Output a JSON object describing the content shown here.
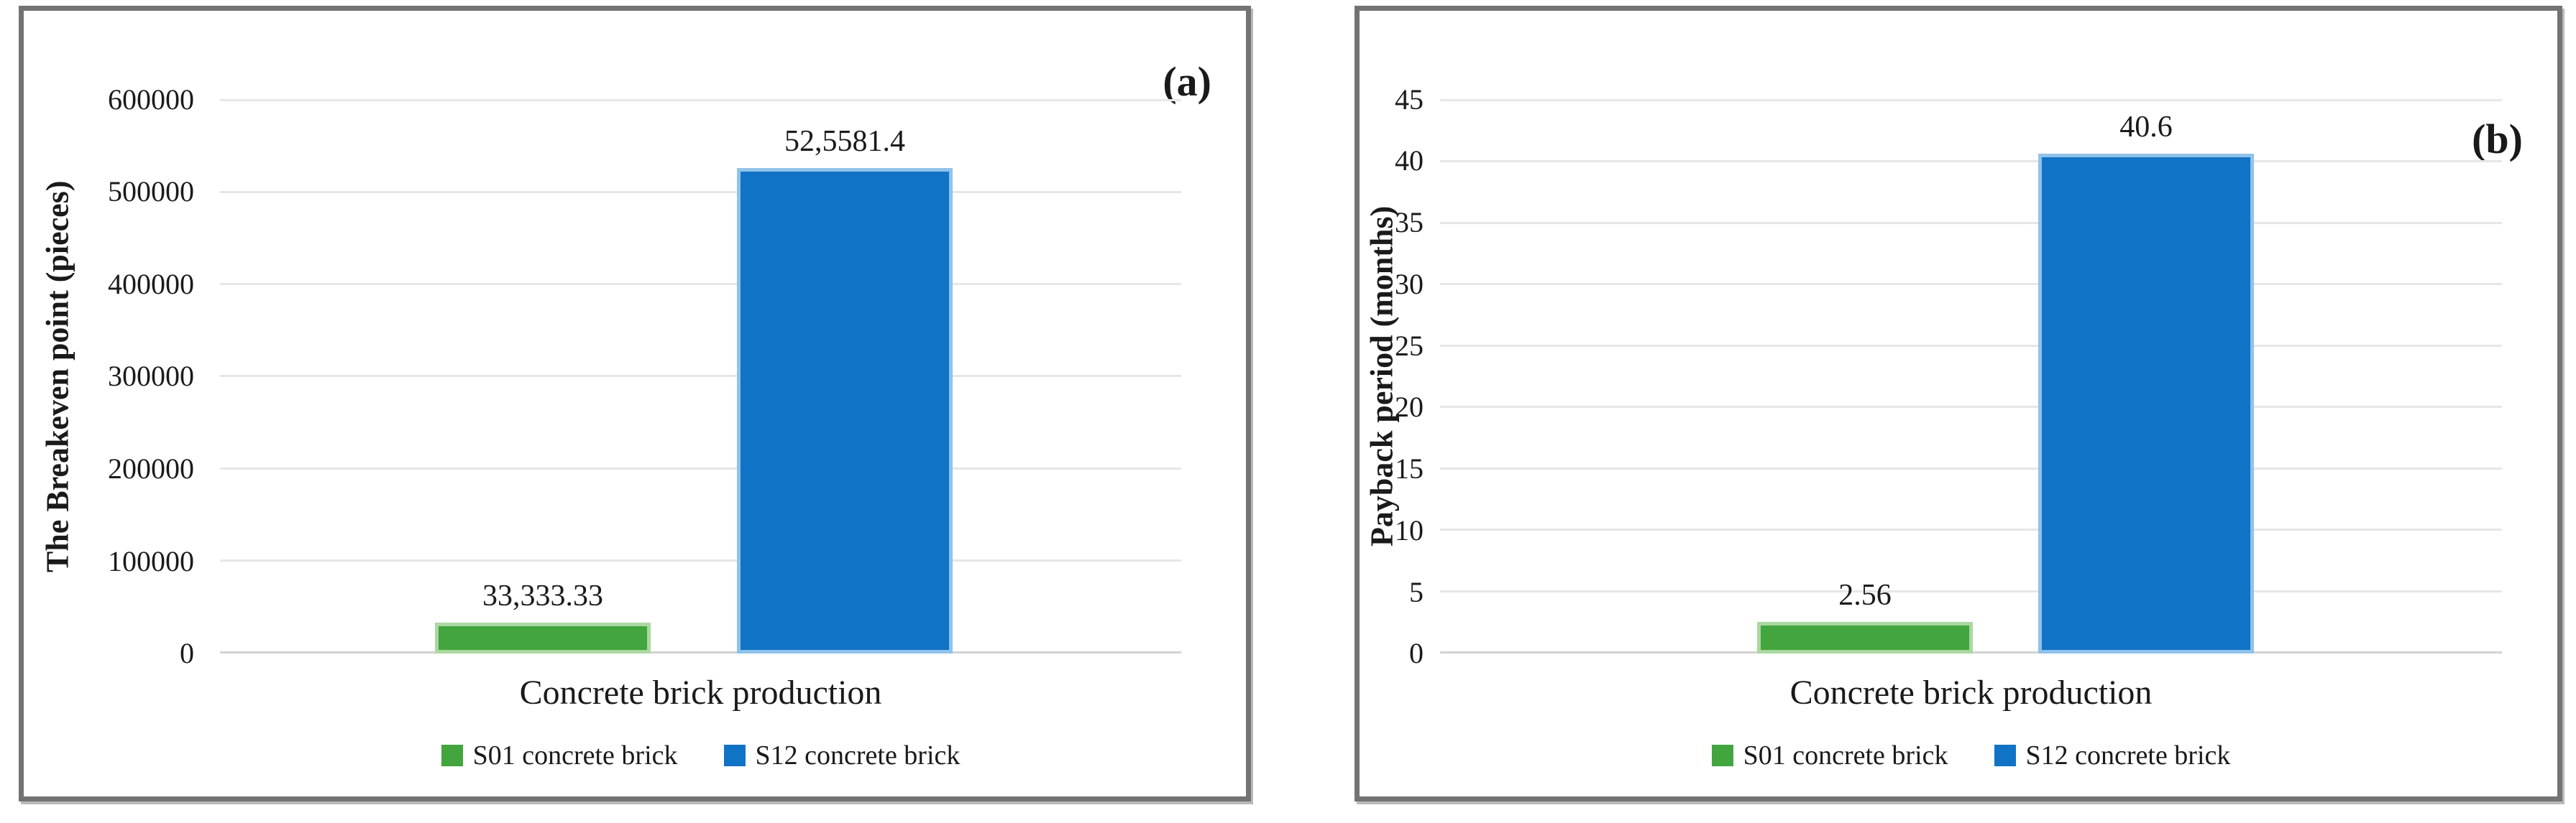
{
  "colors": {
    "s01_green": "#42A53E",
    "s01_green_edge": "#ABD8A1",
    "s12_blue": "#1173C5",
    "s12_blue_edge": "#8FC3EA",
    "gridline": "#E6E6E6",
    "axis_line": "#D2D2D2",
    "panel_border": "#737373",
    "text": "#1A1A1A"
  },
  "chart_data": [
    {
      "type": "bar",
      "panel_label": "(a)",
      "title": "",
      "xlabel": "Concrete brick production",
      "ylabel": "The Breakeven point (pieces)",
      "categories": [
        "Concrete brick production"
      ],
      "series": [
        {
          "name": "S01 concrete brick",
          "values": [
            33333.33
          ],
          "data_label": "33,333.33",
          "color": "#42A53E"
        },
        {
          "name": "S12 concrete brick",
          "values": [
            525581.4
          ],
          "data_label": "52,5581.4",
          "color": "#1173C5"
        }
      ],
      "ylim": [
        0,
        600000
      ],
      "ytick_step": 100000,
      "yticks": [
        "0",
        "100000",
        "200000",
        "300000",
        "400000",
        "500000",
        "600000"
      ],
      "grid": true,
      "legend_position": "bottom"
    },
    {
      "type": "bar",
      "panel_label": "(b)",
      "title": "",
      "xlabel": "Concrete brick production",
      "ylabel": "Payback period (months)",
      "categories": [
        "Concrete brick production"
      ],
      "series": [
        {
          "name": "S01 concrete brick",
          "values": [
            2.56
          ],
          "data_label": "2.56",
          "color": "#42A53E"
        },
        {
          "name": "S12 concrete brick",
          "values": [
            40.6
          ],
          "data_label": "40.6",
          "color": "#1173C5"
        }
      ],
      "ylim": [
        0,
        45
      ],
      "ytick_step": 5,
      "yticks": [
        "0",
        "5",
        "10",
        "15",
        "20",
        "25",
        "30",
        "35",
        "40",
        "45"
      ],
      "grid": true,
      "legend_position": "bottom"
    }
  ],
  "legend": {
    "items": [
      {
        "label": "S01 concrete brick",
        "color": "#42A53E"
      },
      {
        "label": "S12 concrete brick",
        "color": "#1173C5"
      }
    ]
  }
}
